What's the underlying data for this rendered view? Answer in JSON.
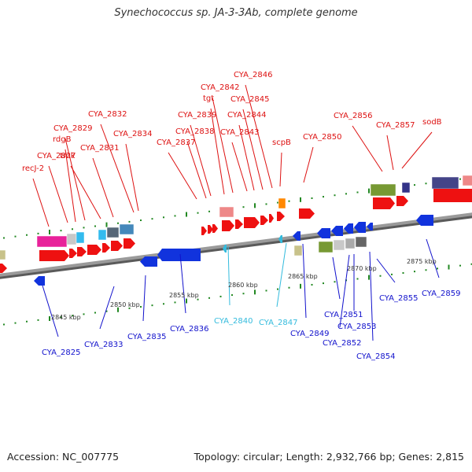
{
  "title": "Synechococcus sp. JA-3-3Ab, complete genome",
  "accession": "Accession: NC_007775",
  "topology": "Topology: circular; Length: 2,932,766 bp; Genes: 2,815",
  "colors": {
    "forward_label": "#dd1111",
    "reverse_label": "#1111cc",
    "highlight_label": "#33bbdd",
    "backbone": "#8a8a8a",
    "tick": "#228822"
  },
  "scale_ticks": [
    "2845 kbp",
    "2850 kbp",
    "2855 kbp",
    "2860 kbp",
    "2865 kbp",
    "2870 kbp",
    "2875 kbp"
  ],
  "top_labels": [
    "recJ-2",
    "CYA_2827",
    "rdgB",
    "CYA_2829",
    "tmk",
    "CYA_2831",
    "CYA_2832",
    "CYA_2834",
    "CYA_2837",
    "CYA_2838",
    "CYA_2839",
    "tgt",
    "CYA_2842",
    "CYA_2843",
    "CYA_2844",
    "CYA_2845",
    "CYA_2846",
    "scpB",
    "CYA_2850",
    "CYA_2856",
    "CYA_2857",
    "sodB"
  ],
  "bottom_labels": [
    "CYA_2825",
    "CYA_2833",
    "CYA_2835",
    "CYA_2836",
    "CYA_2840",
    "CYA_2847",
    "CYA_2849",
    "CYA_2851",
    "CYA_2852",
    "CYA_2853",
    "CYA_2854",
    "CYA_2855",
    "CYA_2859"
  ]
}
